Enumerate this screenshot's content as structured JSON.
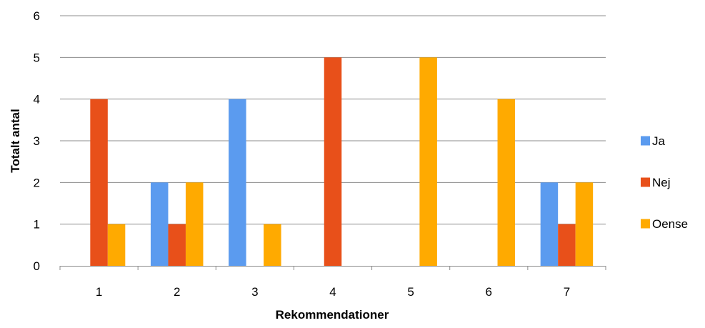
{
  "chart_data": {
    "type": "bar",
    "title": "",
    "xlabel": "Rekommendationer",
    "ylabel": "Totalt antal",
    "categories": [
      "1",
      "2",
      "3",
      "4",
      "5",
      "6",
      "7"
    ],
    "series": [
      {
        "name": "Ja",
        "color": "#5B9BEF",
        "values": [
          0,
          2,
          4,
          0,
          0,
          0,
          2
        ]
      },
      {
        "name": "Nej",
        "color": "#E8501A",
        "values": [
          4,
          1,
          0,
          5,
          0,
          0,
          1
        ]
      },
      {
        "name": "Oense",
        "color": "#FFAA00",
        "values": [
          1,
          2,
          1,
          0,
          5,
          4,
          2
        ]
      }
    ],
    "ylim": [
      0,
      6
    ],
    "yticks": [
      "0",
      "1",
      "2",
      "3",
      "4",
      "5",
      "6"
    ],
    "grid": true,
    "legend_position": "right"
  }
}
